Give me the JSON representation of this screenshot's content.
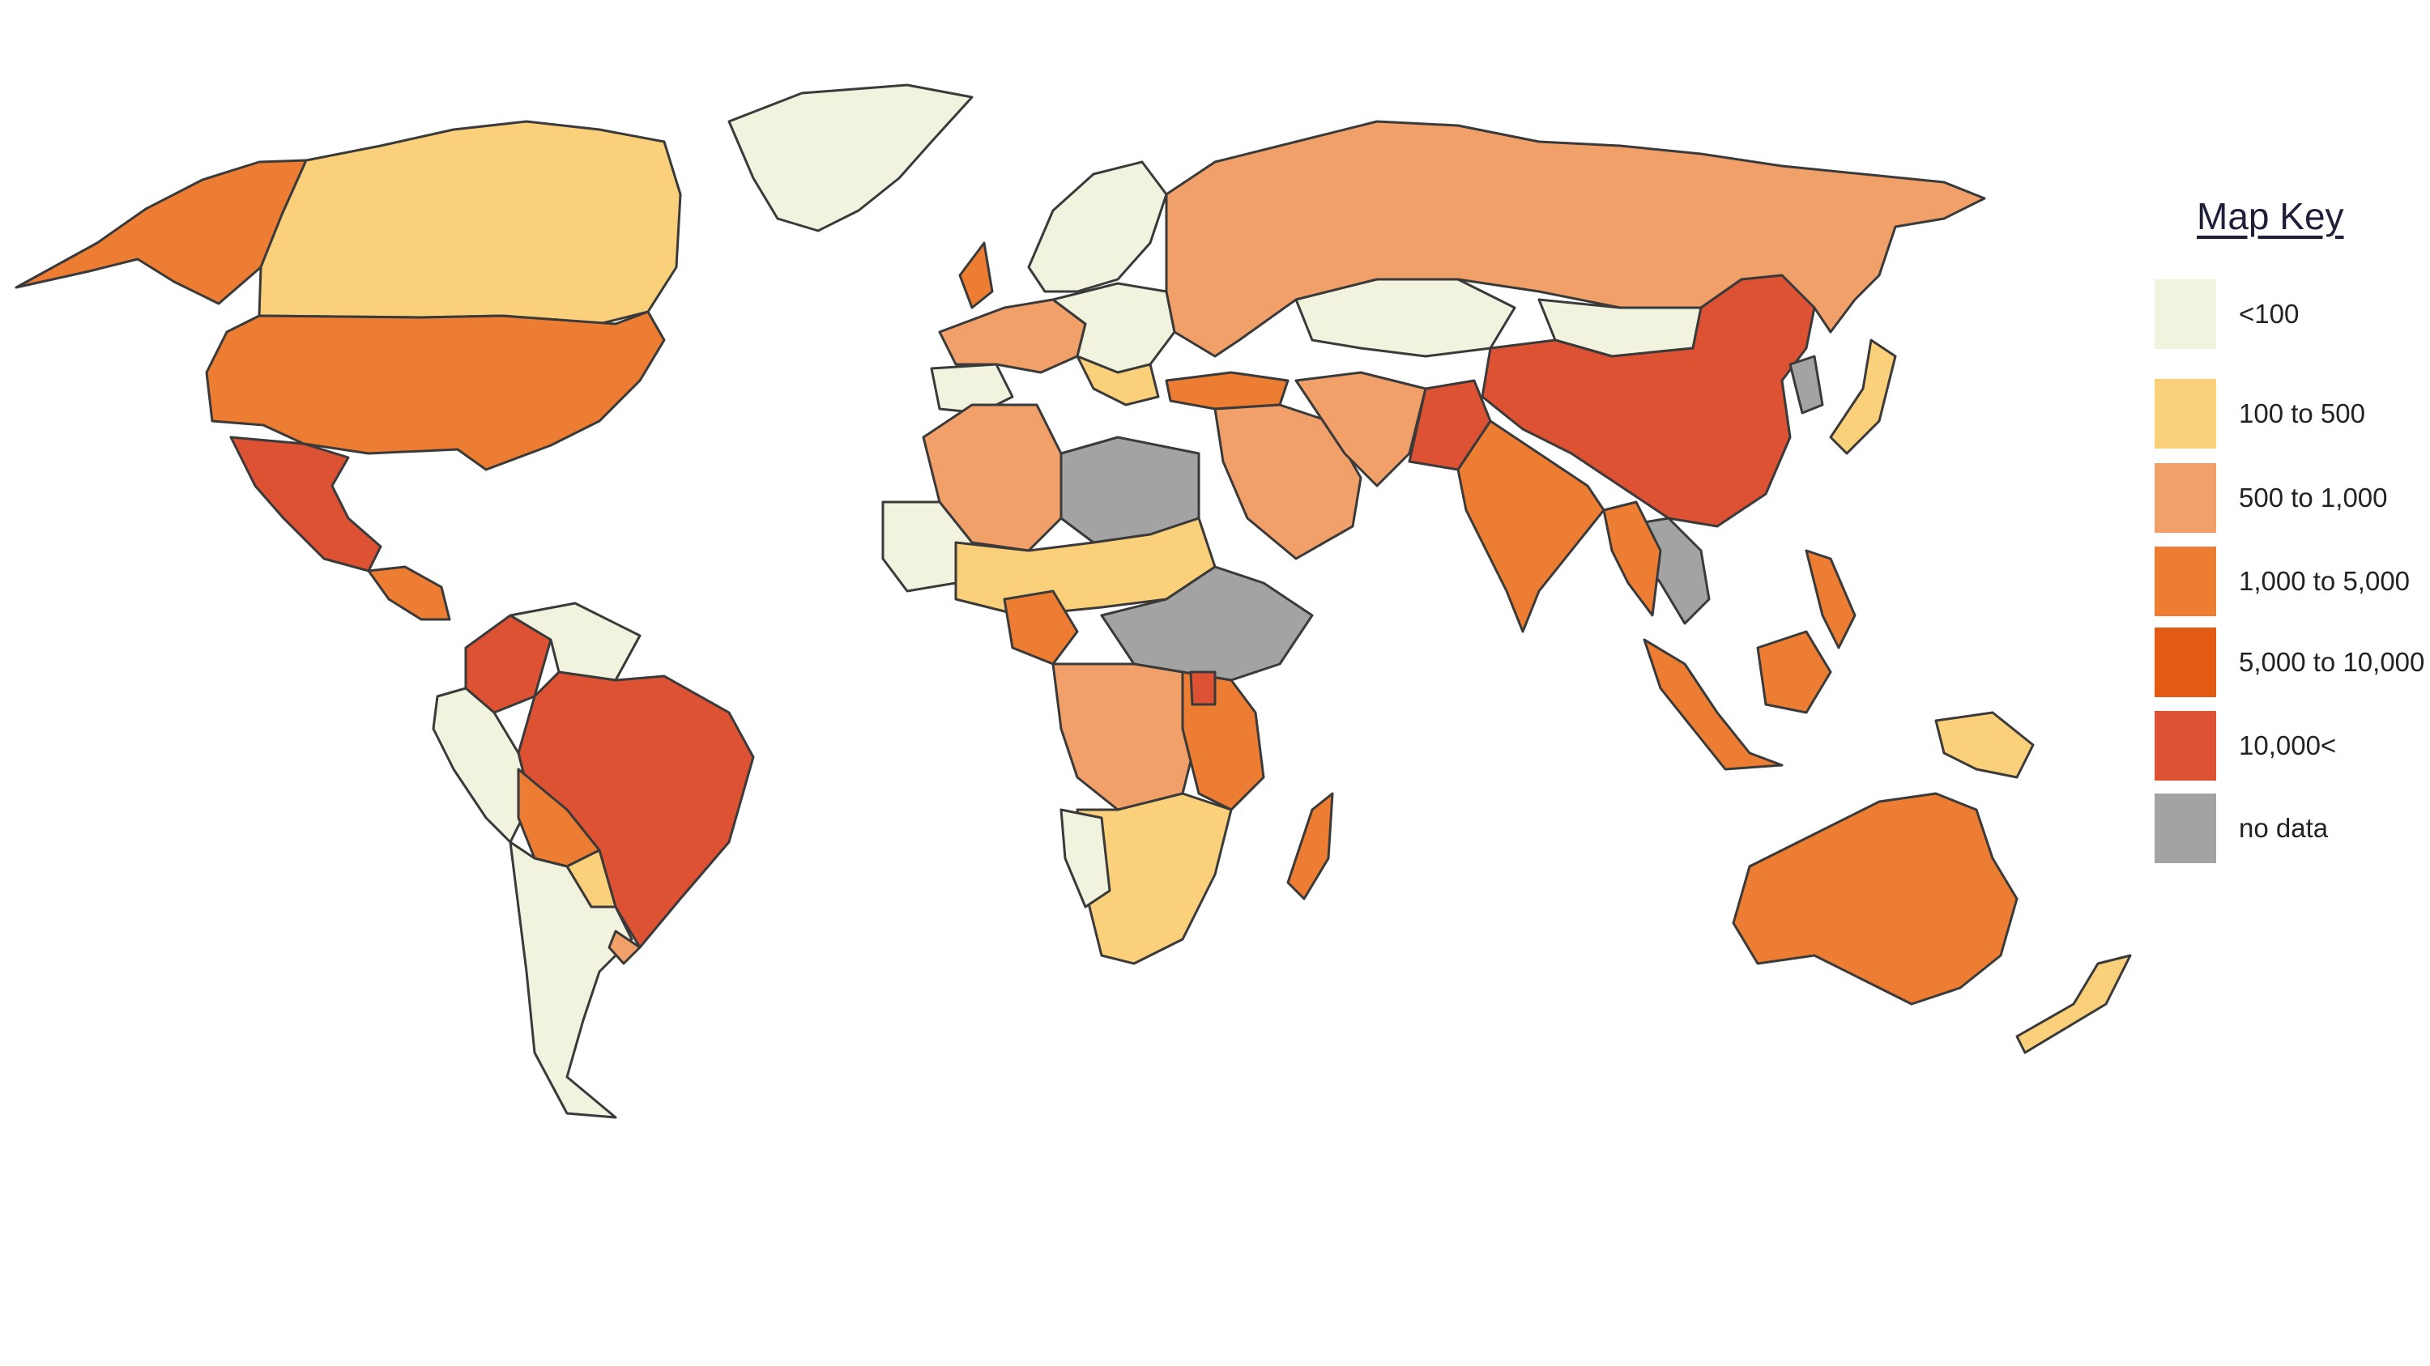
{
  "map": {
    "legend_title": "Map Key",
    "legend": [
      {
        "label": "<100",
        "color": "#f2f3df"
      },
      {
        "label": "100 to 500",
        "color": "#fbd07a"
      },
      {
        "label": "500 to 1,000",
        "color": "#f0a068"
      },
      {
        "label": "1,000 to 5,000",
        "color": "#ec7d32"
      },
      {
        "label": "5,000 to 10,000",
        "color": "#e35a12"
      },
      {
        "label": "10,000<",
        "color": "#dc5232"
      },
      {
        "label": "no data",
        "color": "#a3a3a3"
      }
    ]
  }
}
